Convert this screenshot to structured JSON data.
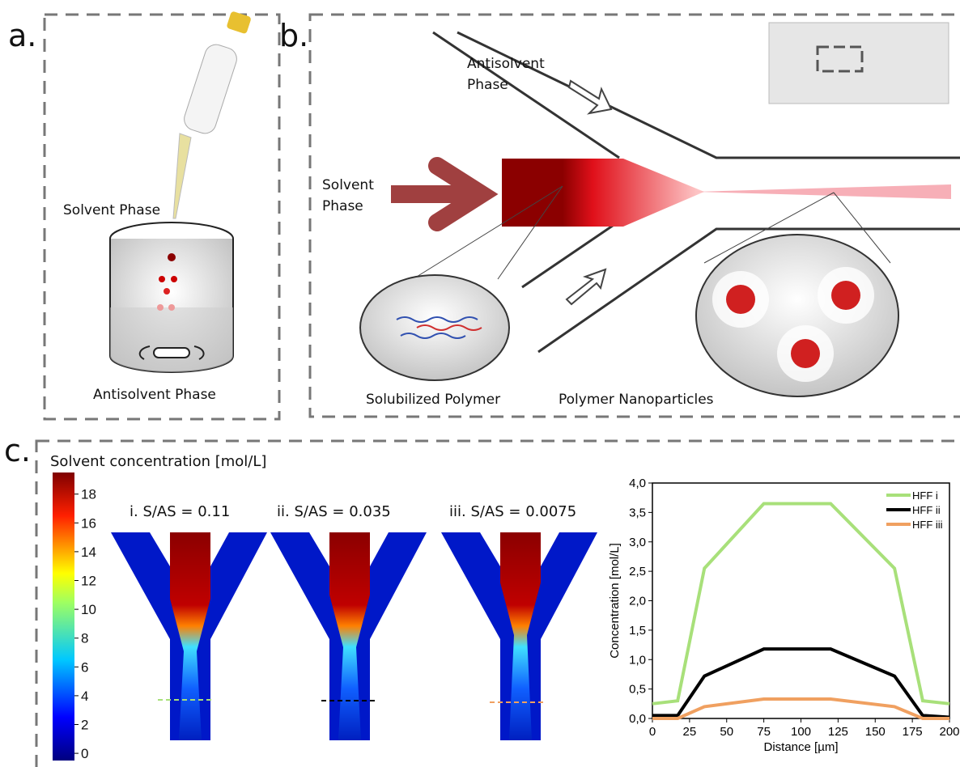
{
  "panel_a": {
    "label": "a.",
    "solvent": "Solvent Phase",
    "antisolvent": "Antisolvent Phase"
  },
  "panel_b": {
    "label": "b.",
    "antisolvent": "Antisolvent Phase",
    "solvent": "Solvent Phase",
    "solubilized": "Solubilized Polymer",
    "nanoparticles": "Polymer Nanoparticles"
  },
  "panel_c": {
    "label": "c.",
    "colorbar": {
      "title": "Solvent concentration [mol/L]",
      "lim": [
        -0.5,
        19.5
      ],
      "ticks": [
        0,
        2,
        4,
        6,
        8,
        10,
        12,
        14,
        16,
        18
      ]
    },
    "simulations": [
      "i. S/AS = 0.11",
      "ii. S/AS = 0.035",
      "iii. S/AS = 0.0075"
    ]
  },
  "chart_data": {
    "type": "line",
    "xlabel": "Distance [µm]",
    "ylabel": "Concentration [mol/L]",
    "x": [
      0,
      17,
      35,
      75,
      120,
      163,
      182,
      200
    ],
    "series": [
      {
        "name": "HFF i",
        "color": "#a8e07a",
        "values": [
          0.25,
          0.3,
          2.55,
          3.65,
          3.65,
          2.55,
          0.3,
          0.25
        ]
      },
      {
        "name": "HFF ii",
        "color": "#000000",
        "values": [
          0.05,
          0.05,
          0.72,
          1.18,
          1.18,
          0.72,
          0.05,
          0.02
        ]
      },
      {
        "name": "HFF iii",
        "color": "#f0a060",
        "values": [
          0.0,
          0.0,
          0.2,
          0.33,
          0.33,
          0.2,
          0.0,
          0.0
        ]
      }
    ],
    "xlim": [
      0,
      200
    ],
    "xticks": [
      0,
      25,
      50,
      75,
      100,
      125,
      150,
      175,
      200
    ],
    "ylim": [
      0,
      4
    ],
    "yticks": [
      {
        "value": 0,
        "label": "0,0"
      },
      {
        "value": 0.5,
        "label": "0,5"
      },
      {
        "value": 1,
        "label": "1,0"
      },
      {
        "value": 1.5,
        "label": "1,5"
      },
      {
        "value": 2,
        "label": "2,0"
      },
      {
        "value": 2.5,
        "label": "2,5"
      },
      {
        "value": 3,
        "label": "3,0"
      },
      {
        "value": 3.5,
        "label": "3,5"
      },
      {
        "value": 4,
        "label": "4,0"
      }
    ],
    "legend": "upper-right"
  }
}
